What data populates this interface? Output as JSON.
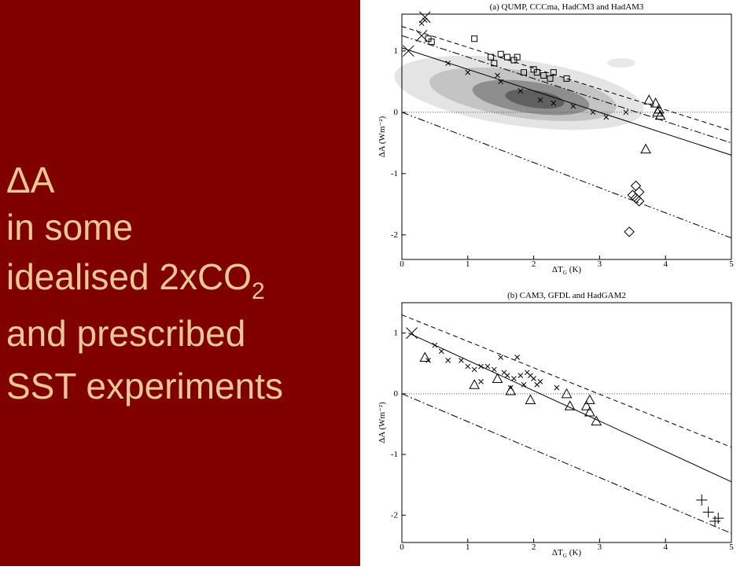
{
  "slide_text": {
    "line1": "ΔA",
    "line2": "in some",
    "line3": {
      "text": "idealised 2xCO",
      "subscript": "2"
    },
    "line4": "and prescribed",
    "line5": "SST experiments"
  },
  "chart_data": [
    {
      "type": "scatter",
      "title": "(a) QUMP, CCCma, HadCM3 and HadAM3",
      "ylabel": "ΔA (Wm⁻²)",
      "xlabel": {
        "text": "ΔT",
        "subscript": "G",
        "unit": "(K)"
      },
      "xlim": [
        0,
        5
      ],
      "ylim": [
        -2.4,
        1.6
      ],
      "xticks": [
        0,
        1,
        2,
        3,
        4,
        5
      ],
      "yticks": [
        -2,
        -1,
        0,
        1
      ],
      "zero_line": true,
      "color": "#000000",
      "series": [
        {
          "marker": "x",
          "x": [
            0.3,
            0.35,
            0.7,
            1.0,
            1.45,
            1.5,
            1.8,
            2.1,
            2.3,
            2.6,
            2.9,
            3.1,
            3.4
          ],
          "values": [
            1.45,
            1.5,
            0.8,
            0.65,
            0.6,
            0.5,
            0.35,
            0.2,
            0.15,
            0.1,
            0.0,
            -0.08,
            0.0
          ]
        },
        {
          "marker": "X",
          "x": [
            0.1,
            0.3,
            0.35
          ],
          "values": [
            1.0,
            1.25,
            1.55
          ]
        },
        {
          "marker": "square",
          "x": [
            0.4,
            0.45,
            1.1,
            1.35,
            1.4,
            1.5,
            1.6,
            1.7,
            1.75,
            1.85,
            2.0,
            2.05,
            2.15,
            2.25,
            2.3,
            2.5
          ],
          "values": [
            1.2,
            1.15,
            1.2,
            0.9,
            0.8,
            0.95,
            0.9,
            0.85,
            0.9,
            0.65,
            0.7,
            0.65,
            0.6,
            0.55,
            0.65,
            0.55
          ]
        },
        {
          "marker": "triangle",
          "x": [
            3.75,
            3.85,
            3.9,
            3.88,
            3.92,
            3.7
          ],
          "values": [
            0.2,
            0.15,
            0.05,
            0.0,
            -0.05,
            -0.6
          ]
        },
        {
          "marker": "diamond",
          "x": [
            3.55,
            3.6,
            3.55,
            3.6,
            3.5,
            3.45
          ],
          "values": [
            -1.2,
            -1.3,
            -1.4,
            -1.45,
            -1.35,
            -1.95
          ]
        }
      ],
      "lines": [
        {
          "style": "solid",
          "x": [
            0,
            5
          ],
          "values": [
            1.05,
            -0.7
          ]
        },
        {
          "style": "dashed",
          "x": [
            0,
            5
          ],
          "values": [
            1.4,
            -0.3
          ]
        },
        {
          "style": "dashdot",
          "x": [
            0,
            5
          ],
          "values": [
            1.25,
            -0.5
          ]
        },
        {
          "style": "dashdotdot",
          "x": [
            0,
            5
          ],
          "values": [
            0.0,
            -2.05
          ]
        }
      ]
    },
    {
      "type": "scatter",
      "title": "(b) CAM3, GFDL and HadGAM2",
      "ylabel": "ΔA (Wm⁻²)",
      "xlabel": {
        "text": "ΔT",
        "subscript": "G",
        "unit": "(K)"
      },
      "xlim": [
        0,
        5
      ],
      "ylim": [
        -2.45,
        1.5
      ],
      "xticks": [
        0,
        1,
        2,
        3,
        4,
        5
      ],
      "yticks": [
        -2,
        -1,
        0,
        1
      ],
      "zero_line": true,
      "color": "#000000",
      "series": [
        {
          "marker": "x",
          "x": [
            0.5,
            0.6,
            0.4,
            0.7,
            0.9,
            1.0,
            1.1,
            1.2,
            1.3,
            1.4,
            1.55,
            1.6,
            1.7,
            1.8,
            1.9,
            1.95,
            2.0,
            2.05,
            2.1,
            1.85,
            1.5,
            1.75,
            2.35,
            1.65,
            1.2
          ],
          "values": [
            0.8,
            0.7,
            0.55,
            0.55,
            0.55,
            0.45,
            0.4,
            0.45,
            0.45,
            0.4,
            0.35,
            0.3,
            0.25,
            0.3,
            0.35,
            0.3,
            0.25,
            0.15,
            0.2,
            0.15,
            0.6,
            0.6,
            0.1,
            0.1,
            0.2
          ]
        },
        {
          "marker": "triangle",
          "x": [
            0.35,
            1.1,
            1.65,
            1.95,
            2.5,
            2.55,
            2.85,
            2.8,
            2.85,
            2.95,
            1.45
          ],
          "values": [
            0.6,
            0.15,
            0.05,
            -0.1,
            0.0,
            -0.2,
            -0.1,
            -0.2,
            -0.3,
            -0.45,
            0.25
          ]
        },
        {
          "marker": "X",
          "x": [
            0.15
          ],
          "values": [
            1.0
          ]
        },
        {
          "marker": "plus",
          "x": [
            4.55,
            4.65,
            4.75,
            4.8
          ],
          "values": [
            -1.75,
            -1.95,
            -2.1,
            -2.05
          ]
        }
      ],
      "lines": [
        {
          "style": "solid",
          "x": [
            0.1,
            5
          ],
          "values": [
            1.0,
            -1.45
          ]
        },
        {
          "style": "dashed",
          "x": [
            0,
            5
          ],
          "values": [
            1.3,
            -0.88
          ]
        },
        {
          "style": "dashdot",
          "x": [
            0,
            5
          ],
          "values": [
            0.0,
            -2.3
          ]
        }
      ]
    }
  ]
}
